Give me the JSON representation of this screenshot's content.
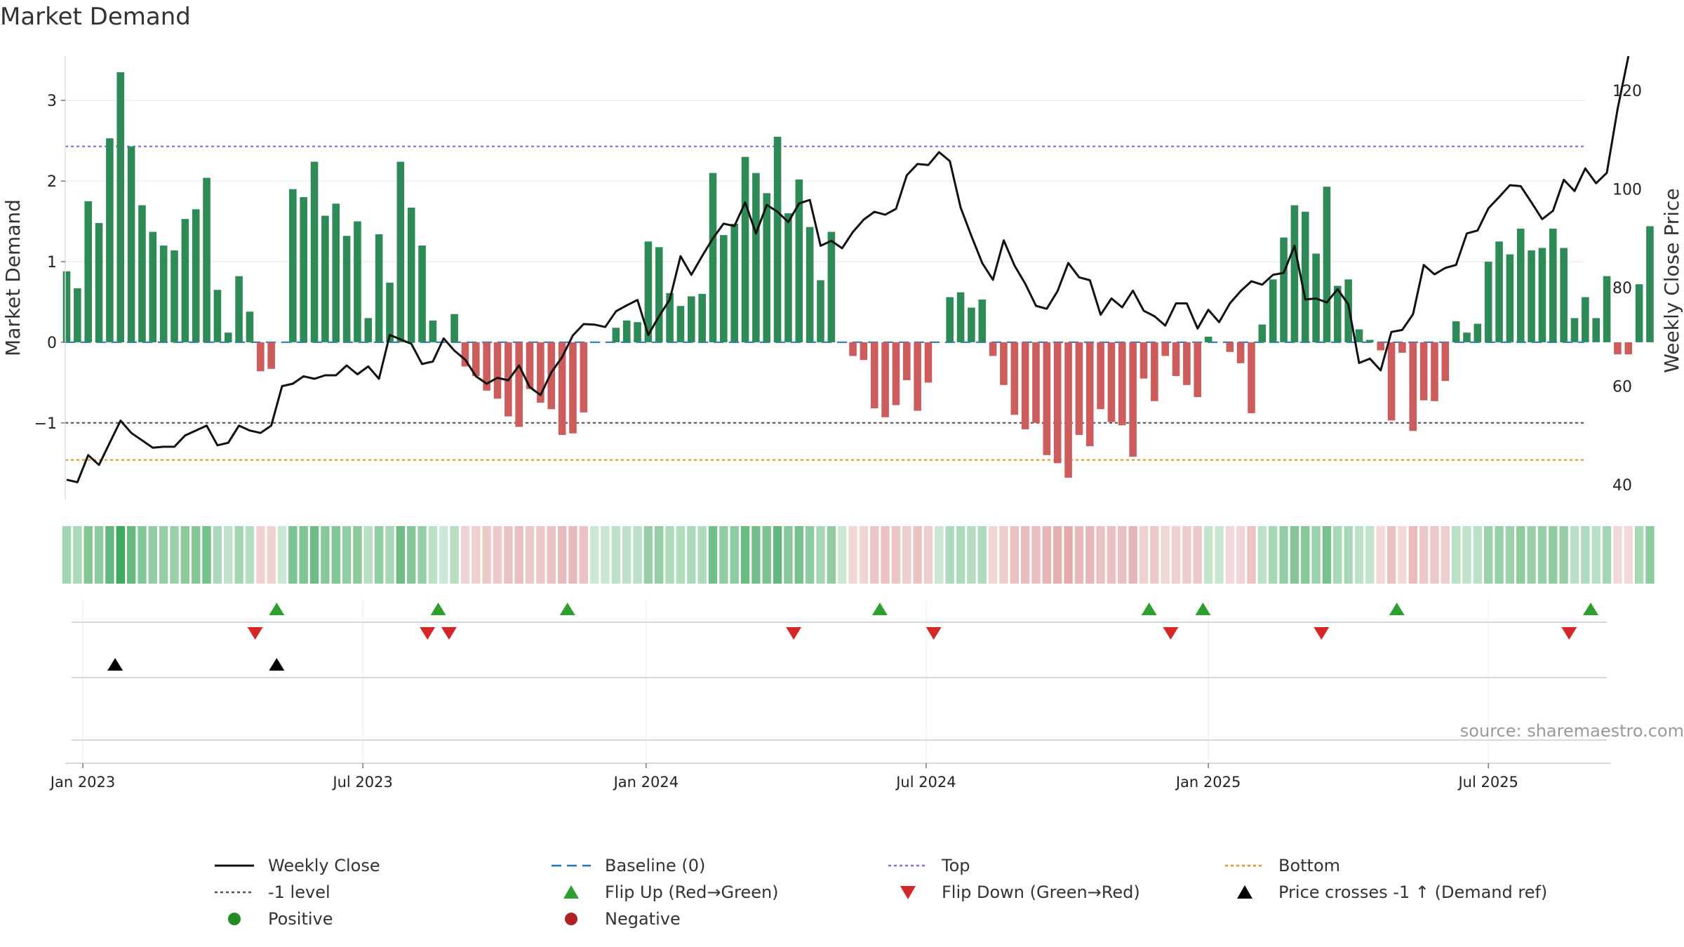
{
  "title": "Market Demand",
  "source": "source: sharemaestro.com",
  "colors": {
    "positive_bar": "#2e8b57",
    "negative_bar": "#cd5c5c",
    "close_line": "#111111",
    "baseline": "#1f77b4",
    "top": "#7b68ee",
    "bottom": "#e69020",
    "minus_one": "#555555",
    "flip_up": "#2ca02c",
    "flip_down": "#d62728",
    "cross": "#000000"
  },
  "legend": [
    {
      "label": "Weekly Close",
      "symbol": "line-solid",
      "color": "#111111"
    },
    {
      "label": "Baseline (0)",
      "symbol": "line-dashed",
      "color": "#1f77b4"
    },
    {
      "label": "Top",
      "symbol": "line-dotted",
      "color": "#7b68ee"
    },
    {
      "label": "Bottom",
      "symbol": "line-dotted",
      "color": "#e69020"
    },
    {
      "label": "-1 level",
      "symbol": "line-dotted",
      "color": "#555555"
    },
    {
      "label": "Flip Up (Red→Green)",
      "symbol": "triangle-up",
      "color": "#2ca02c"
    },
    {
      "label": "Flip Down (Green→Red)",
      "symbol": "triangle-down",
      "color": "#d62728"
    },
    {
      "label": "Price crosses -1 ↑ (Demand ref)",
      "symbol": "triangle-up",
      "color": "#000000"
    },
    {
      "label": "Positive",
      "symbol": "circle",
      "color": "#228b22"
    },
    {
      "label": "Negative",
      "symbol": "circle",
      "color": "#b22222"
    }
  ],
  "chart_data": {
    "type": "bar",
    "title": "Market Demand",
    "ylabel": "Market Demand",
    "y2label": "Weekly Close Price",
    "ylim": [
      -1.95,
      3.55
    ],
    "y2lim": [
      37,
      127
    ],
    "yticks": [
      -1,
      0,
      1,
      2,
      3
    ],
    "y2ticks": [
      40,
      60,
      80,
      100,
      120
    ],
    "ytick_labels": [
      "−1",
      "0",
      "1",
      "2",
      "3"
    ],
    "y2tick_labels": [
      "40",
      "60",
      "80",
      "100",
      "120"
    ],
    "reference_lines": {
      "baseline": 0,
      "top": 2.43,
      "bottom": -1.46,
      "minus_one": -1
    },
    "x_ticks": [
      {
        "label": "Jan 2023",
        "week": 1.5
      },
      {
        "label": "Jul 2023",
        "week": 27.5
      },
      {
        "label": "Jan 2024",
        "week": 53.8
      },
      {
        "label": "Jul 2024",
        "week": 79.8
      },
      {
        "label": "Jan 2025",
        "week": 106
      },
      {
        "label": "Jul 2025",
        "week": 132
      }
    ],
    "demand": [
      0.88,
      0.67,
      1.75,
      1.48,
      2.53,
      3.35,
      2.43,
      1.7,
      1.37,
      1.2,
      1.14,
      1.53,
      1.65,
      2.04,
      0.65,
      0.12,
      0.82,
      0.38,
      -0.36,
      -0.33,
      0.0,
      1.9,
      1.8,
      2.24,
      1.57,
      1.72,
      1.32,
      1.5,
      0.3,
      1.34,
      0.74,
      2.24,
      1.67,
      1.2,
      0.27,
      0.0,
      0.35,
      -0.3,
      -0.42,
      -0.6,
      -0.7,
      -0.92,
      -1.05,
      -0.58,
      -0.75,
      -0.83,
      -1.15,
      -1.13,
      -0.87,
      0.0,
      0.0,
      0.18,
      0.27,
      0.25,
      1.25,
      1.18,
      0.61,
      0.45,
      0.57,
      0.6,
      2.1,
      1.33,
      1.47,
      2.3,
      2.1,
      1.85,
      2.55,
      1.6,
      2.02,
      1.43,
      0.77,
      1.37,
      0.0,
      -0.17,
      -0.22,
      -0.82,
      -0.93,
      -0.78,
      -0.47,
      -0.85,
      -0.5,
      0.0,
      0.56,
      0.62,
      0.43,
      0.53,
      -0.17,
      -0.53,
      -0.9,
      -1.08,
      -1.0,
      -1.4,
      -1.5,
      -1.68,
      -1.15,
      -1.29,
      -0.83,
      -0.99,
      -1.03,
      -1.42,
      -0.45,
      -0.73,
      -0.17,
      -0.42,
      -0.53,
      -0.68,
      0.07,
      0.0,
      -0.12,
      -0.26,
      -0.88,
      0.22,
      0.78,
      1.3,
      1.7,
      1.62,
      1.1,
      1.93,
      0.7,
      0.78,
      0.16,
      0.03,
      -0.1,
      -0.97,
      -0.13,
      -1.1,
      -0.72,
      -0.73,
      -0.48,
      0.26,
      0.12,
      0.23,
      1.0,
      1.25,
      1.09,
      1.41,
      1.14,
      1.17,
      1.41,
      1.17,
      0.3,
      0.56,
      0.3,
      0.82,
      -0.15,
      -0.15,
      0.72,
      1.44
    ],
    "close": [
      41,
      40.5,
      46,
      44,
      48.5,
      53,
      50.5,
      49,
      47.5,
      47.7,
      47.7,
      50,
      51,
      52,
      48,
      48.5,
      52,
      51,
      50.5,
      52,
      60,
      60.5,
      62,
      61.5,
      62.2,
      62.2,
      64.2,
      62.4,
      64,
      61.5,
      70.4,
      69.5,
      68.6,
      64.5,
      65,
      69.7,
      67.2,
      65.4,
      62,
      60.5,
      61.7,
      61.2,
      64.2,
      59.8,
      58.2,
      62.8,
      65.9,
      70.3,
      72.6,
      72.5,
      72,
      75.2,
      76.4,
      77.5,
      70.4,
      74.2,
      77.6,
      86.4,
      82.6,
      86.4,
      90,
      93,
      92.5,
      97.3,
      91,
      96.8,
      95.4,
      93.3,
      97.1,
      97.8,
      88.5,
      89.5,
      88,
      91.3,
      93.8,
      95.4,
      94.8,
      96,
      102.8,
      105.1,
      104.9,
      107.5,
      105.7,
      96.3,
      90.5,
      85,
      81.6,
      89.6,
      84.5,
      80.8,
      76.3,
      75.7,
      79.3,
      85,
      82.1,
      81.5,
      74.5,
      77.8,
      76,
      79.4,
      75.3,
      74.2,
      72.3,
      76.8,
      76.8,
      71.7,
      75.5,
      73,
      76.8,
      79.3,
      81.3,
      80.6,
      82.6,
      83,
      88.5,
      77.6,
      77.8,
      77,
      79.7,
      76.6,
      64.7,
      65.6,
      63.2,
      71,
      71.4,
      74.6,
      84.6,
      82.7,
      84,
      84.6,
      91,
      91.6,
      96.1,
      98.4,
      100.8,
      100.6,
      97.3,
      93.9,
      95.6,
      101.9,
      99.6,
      104.2,
      101.2,
      103.3,
      116.3,
      127
    ],
    "flip_up_weeks": [
      19.5,
      34.5,
      46.5,
      75.5,
      100.5,
      105.5,
      123.5,
      141.5
    ],
    "flip_down_weeks": [
      17.5,
      33.5,
      35.5,
      67.5,
      80.5,
      102.5,
      116.5,
      139.5
    ],
    "price_cross_weeks": [
      4.5,
      19.5
    ]
  }
}
